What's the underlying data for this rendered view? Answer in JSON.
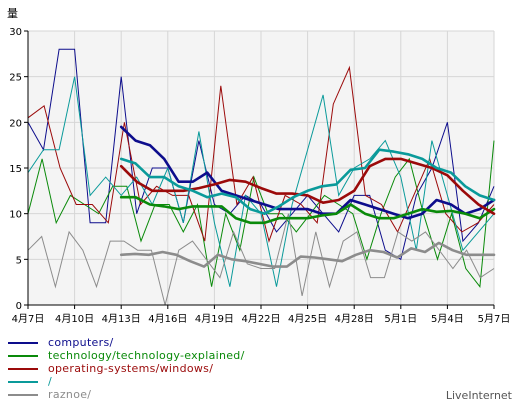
{
  "chart_data": {
    "type": "line",
    "ylabel": "量",
    "ylim": [
      0,
      30
    ],
    "y_ticks": [
      "0",
      "5",
      "10",
      "15",
      "20",
      "25",
      "30"
    ],
    "x_tick_labels": [
      "4月7日",
      "4月10日",
      "4月13日",
      "4月16日",
      "4月19日",
      "4月22日",
      "4月25日",
      "4月28日",
      "5月1日",
      "5月4日",
      "5月7日"
    ],
    "x_tick_index": [
      0,
      3,
      6,
      9,
      12,
      15,
      18,
      21,
      24,
      27,
      30
    ],
    "grid": true,
    "legend_placement": "bottom-left",
    "series": [
      {
        "name": "computers/",
        "color": "#0d0d8c",
        "values": [
          20,
          17,
          28,
          28,
          9,
          9,
          25,
          10,
          15,
          15,
          9,
          18,
          11,
          10,
          12,
          11,
          8,
          10,
          12,
          10,
          8,
          12,
          12,
          6,
          5,
          12,
          15,
          20,
          7,
          9,
          13
        ],
        "avg_start": 6,
        "avg": [
          19.5,
          18,
          17.5,
          16,
          13.5,
          13.5,
          14.5,
          12.5,
          12,
          11.5,
          11,
          10.5,
          10.5,
          10.5,
          10,
          10,
          11.5,
          11,
          10.5,
          10,
          9.5,
          10,
          11.5,
          11,
          10,
          10.5,
          11.5
        ]
      },
      {
        "name": "technology/technology-explained/",
        "color": "#0a8a0a",
        "values": [
          10,
          16,
          9,
          12,
          11,
          10,
          13,
          13,
          7,
          11,
          11,
          8,
          11,
          2,
          10,
          6,
          14,
          10,
          10,
          8,
          10,
          12,
          11,
          10,
          5,
          10,
          14,
          16,
          10,
          5,
          10,
          4,
          2,
          18
        ],
        "avg_start": 6,
        "avg": [
          11.8,
          11.8,
          11,
          10.8,
          10.5,
          10.8,
          10.8,
          10.8,
          9.5,
          9,
          9,
          9.5,
          9.5,
          9.5,
          9.8,
          10,
          11,
          10,
          9.5,
          9.5,
          10,
          10.5,
          10.2,
          10.3,
          10,
          9.5,
          10.5
        ]
      },
      {
        "name": "operating-systems/windows/",
        "color": "#9b0a0a",
        "values": [
          20.5,
          21.8,
          15,
          11,
          11,
          9,
          20,
          11,
          13,
          12,
          12,
          7,
          24,
          11,
          14,
          7,
          12,
          11,
          9,
          22,
          26,
          12,
          11,
          8,
          12,
          16,
          10,
          8,
          9,
          11
        ],
        "avg_start": 6,
        "avg": [
          15.2,
          13.5,
          12.5,
          12.5,
          12.5,
          12.8,
          13.2,
          13.7,
          13.5,
          12.8,
          12.2,
          12.2,
          12,
          11.2,
          11.5,
          12.5,
          15.2,
          16,
          16,
          15.5,
          15,
          14.2,
          12.5,
          11,
          10
        ]
      },
      {
        "name": "/",
        "color": "#0a9a9a",
        "values": [
          14.5,
          17,
          17,
          25,
          12,
          14,
          12,
          14,
          11,
          15,
          9,
          19,
          9,
          2,
          12,
          10,
          2,
          11,
          17,
          23,
          12,
          15,
          16,
          18,
          14,
          6,
          18,
          12,
          6,
          8,
          10
        ],
        "avg_start": 6,
        "avg": [
          16,
          15.5,
          14,
          14,
          13,
          12.5,
          11.8,
          12.2,
          11.8,
          10.5,
          10,
          10.8,
          11.8,
          12.5,
          13,
          13.2,
          14.8,
          15,
          17,
          16.8,
          16.5,
          16,
          15,
          14.5,
          13,
          12,
          11.5
        ]
      },
      {
        "name": "raznoe/",
        "color": "#8c8c8c",
        "values": [
          6,
          7.5,
          2,
          8,
          6,
          2,
          7,
          7,
          6,
          6,
          0,
          6,
          7,
          5,
          3,
          8,
          4.5,
          4,
          4,
          10,
          1,
          8,
          2,
          7,
          8,
          3,
          3,
          8,
          7,
          8,
          6,
          4,
          6,
          3,
          4
        ],
        "avg_start": 6,
        "avg": [
          5.5,
          5.6,
          5.5,
          5.8,
          5.5,
          4.8,
          4.2,
          5.5,
          5,
          4.8,
          4.5,
          4.2,
          4.2,
          5.3,
          5.2,
          5,
          4.8,
          5.5,
          6,
          5.8,
          5.2,
          6.2,
          5.8,
          6.8,
          6,
          5.5,
          5.5,
          5.5
        ]
      }
    ]
  },
  "footer": {
    "source": "LiveInternet"
  }
}
